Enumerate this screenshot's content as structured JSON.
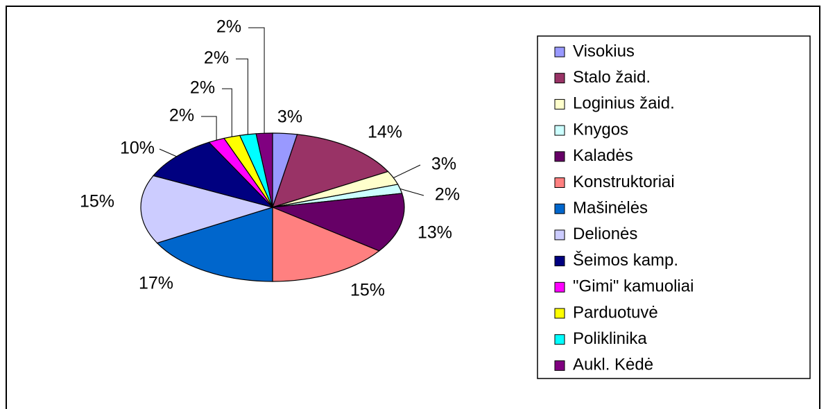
{
  "chart_data": {
    "type": "pie",
    "categories": [
      "Visokius",
      "Stalo žaid.",
      "Loginius žaid.",
      "Knygos",
      "Kaladės",
      "Konstruktoriai",
      "Mašinėlės",
      "Delionės",
      "Šeimos kamp.",
      "\"Gimi\" kamuoliai",
      "Parduotuvė",
      "Poliklinika",
      "Aukl. Kėdė"
    ],
    "values": [
      3,
      14,
      3,
      2,
      13,
      15,
      17,
      15,
      10,
      2,
      2,
      2,
      2
    ],
    "value_labels": [
      "3%",
      "14%",
      "3%",
      "2%",
      "13%",
      "15%",
      "17%",
      "15%",
      "10%",
      "2%",
      "2%",
      "2%",
      "2%"
    ],
    "colors": [
      "#9999ff",
      "#993366",
      "#ffffcc",
      "#ccffff",
      "#660066",
      "#ff8080",
      "#0066cc",
      "#ccccff",
      "#000080",
      "#ff00ff",
      "#ffff00",
      "#00ffff",
      "#800080"
    ],
    "legend": "right"
  }
}
